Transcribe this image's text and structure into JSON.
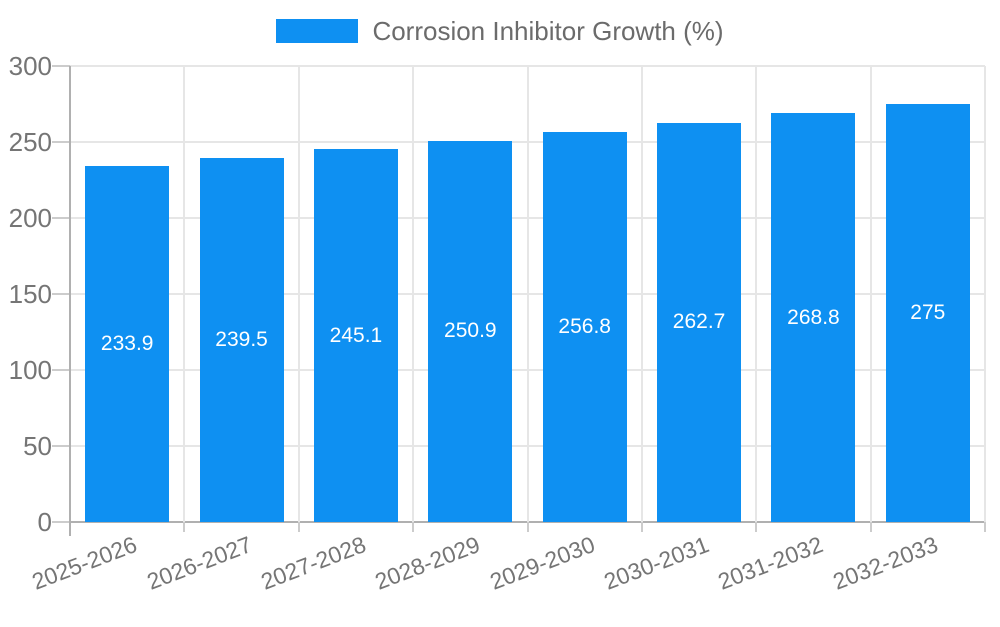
{
  "chart_data": {
    "type": "bar",
    "title": "",
    "legend": "Corrosion Inhibitor Growth (%)",
    "legend_position": "top-center",
    "categories": [
      "2025-2026",
      "2026-2027",
      "2027-2028",
      "2028-2029",
      "2029-2030",
      "2030-2031",
      "2031-2032",
      "2032-2033"
    ],
    "values": [
      233.9,
      239.5,
      245.1,
      250.9,
      256.8,
      262.7,
      268.8,
      275
    ],
    "value_labels": [
      "233.9",
      "239.5",
      "245.1",
      "250.9",
      "256.8",
      "262.7",
      "268.8",
      "275"
    ],
    "xlabel": "",
    "ylabel": "",
    "ylim": [
      0,
      300
    ],
    "yticks": [
      0,
      50,
      100,
      150,
      200,
      250,
      300
    ],
    "grid": true,
    "colors": {
      "bar": "#0e90f2",
      "grid": "#e6e6e6",
      "axis": "#b0b0b0",
      "tick": "#cccccc",
      "axis_text": "#757575",
      "legend_text": "#6b6b6b",
      "bar_label": "#ffffff",
      "background": "#ffffff"
    }
  }
}
